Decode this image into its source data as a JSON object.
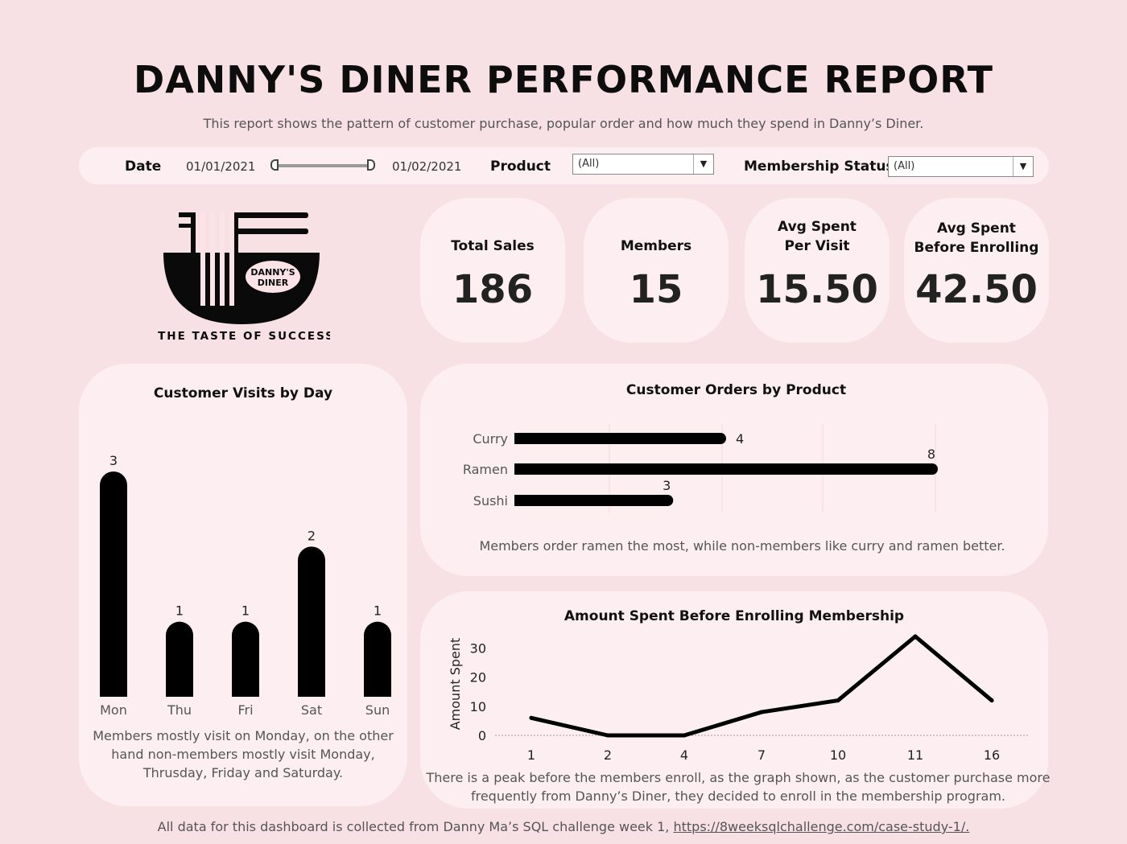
{
  "header": {
    "title": "DANNY'S DINER PERFORMANCE REPORT",
    "subtitle": "This report shows the pattern of customer purchase, popular order and how much they spend in Danny’s Diner."
  },
  "filters": {
    "date_label": "Date",
    "date_start": "01/01/2021",
    "date_end": "01/02/2021",
    "product_label": "Product",
    "product_value": "(All)",
    "membership_label": "Membership Status",
    "membership_value": "(All)"
  },
  "logo": {
    "badge_line1": "DANNY'S",
    "badge_line2": "DINER",
    "tagline": "THE TASTE OF SUCCESS"
  },
  "kpis": [
    {
      "label_line1": "Total Sales",
      "label_line2": "",
      "value": "186"
    },
    {
      "label_line1": "Members",
      "label_line2": "",
      "value": "15"
    },
    {
      "label_line1": "Avg Spent",
      "label_line2": "Per Visit",
      "value": "15.50"
    },
    {
      "label_line1": "Avg Spent",
      "label_line2": "Before Enrolling",
      "value": "42.50"
    }
  ],
  "visits": {
    "title": "Customer Visits by Day",
    "caption_line1": "Members mostly visit on Monday, on the other",
    "caption_line2": "hand non-members mostly visit Monday,",
    "caption_line3": "Thrusday, Friday and Saturday."
  },
  "orders": {
    "title": "Customer Orders by Product",
    "caption": "Members order ramen the most, while non-members like curry and ramen better."
  },
  "spent": {
    "title": "Amount Spent Before Enrolling Membership",
    "caption_line1": "There is a peak before the members enroll, as the graph shown, as the customer purchase more",
    "caption_line2": "frequently from Danny’s Diner, they decided to enroll in the membership program."
  },
  "footer": {
    "text": "All data for this dashboard is collected from Danny Ma’s SQL challenge week 1, ",
    "link": "https://8weeksqlchallenge.com/case-study-1/."
  },
  "colors": {
    "background": "#f8e1e4",
    "panel": "#fdeff1",
    "bars": "#000000"
  },
  "chart_data": [
    {
      "type": "bar",
      "title": "Customer Visits by Day",
      "categories": [
        "Mon",
        "Thu",
        "Fri",
        "Sat",
        "Sun"
      ],
      "values": [
        3,
        1,
        1,
        2,
        1
      ],
      "data_labels": true,
      "grid": false
    },
    {
      "type": "bar",
      "orientation": "horizontal",
      "title": "Customer Orders by Product",
      "categories": [
        "Curry",
        "Ramen",
        "Sushi"
      ],
      "values": [
        4,
        8,
        3
      ],
      "data_labels": true
    },
    {
      "type": "line",
      "title": "Amount Spent Before Enrolling Membership",
      "x": [
        "1",
        "2",
        "4",
        "7",
        "10",
        "11",
        "16"
      ],
      "values": [
        6,
        0,
        0,
        8,
        12,
        34,
        12
      ],
      "ylabel": "Amount Spent",
      "yticks": [
        0,
        10,
        20,
        30
      ],
      "ylim": [
        0,
        34
      ]
    }
  ]
}
